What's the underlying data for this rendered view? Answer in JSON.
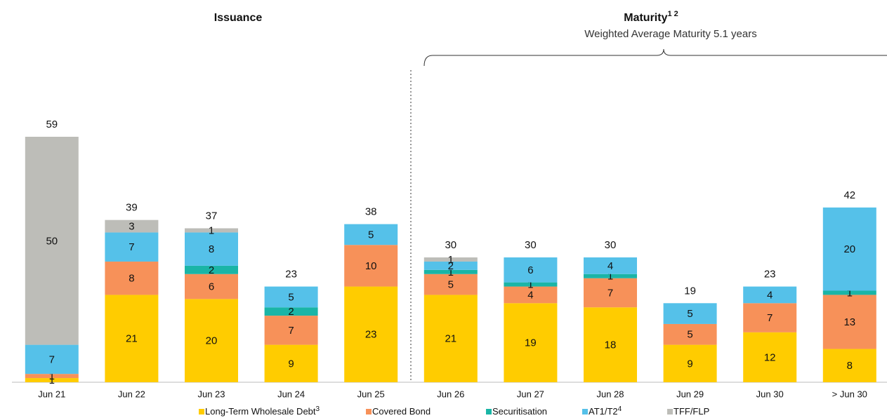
{
  "chart_data": {
    "type": "stacked_bar",
    "title": "Issuance",
    "title2": "Maturity",
    "title2_superscript": "1 2",
    "subtitle": "Weighted Average Maturity 5.1 years",
    "categories": [
      "Jun 21",
      "Jun 22",
      "Jun 23",
      "Jun 24",
      "Jun 25",
      "Jun 26",
      "Jun 27",
      "Jun 28",
      "Jun 29",
      "Jun 30",
      "> Jun 30"
    ],
    "series": [
      {
        "name": "Long-Term Wholesale Debt",
        "superscript": "3",
        "color": "#FFCC00",
        "values": [
          1,
          21,
          20,
          9,
          23,
          21,
          19,
          18,
          9,
          12,
          8
        ]
      },
      {
        "name": "Covered Bond",
        "color": "#F79159",
        "values": [
          1,
          8,
          6,
          7,
          10,
          5,
          4,
          7,
          5,
          7,
          13
        ]
      },
      {
        "name": "Securitisation",
        "color": "#1AB5A6",
        "values": [
          null,
          null,
          2,
          2,
          null,
          1,
          1,
          1,
          null,
          null,
          1
        ]
      },
      {
        "name": "AT1/T2",
        "superscript": "4",
        "color": "#55C1E9",
        "values": [
          7,
          7,
          8,
          5,
          5,
          2,
          6,
          4,
          5,
          4,
          20
        ]
      },
      {
        "name": "TFF/FLP",
        "color": "#BDBDB8",
        "values": [
          50,
          3,
          1,
          null,
          null,
          1,
          null,
          null,
          null,
          null,
          null
        ]
      }
    ],
    "totals": [
      59,
      39,
      37,
      23,
      38,
      30,
      30,
      30,
      19,
      23,
      42
    ]
  }
}
